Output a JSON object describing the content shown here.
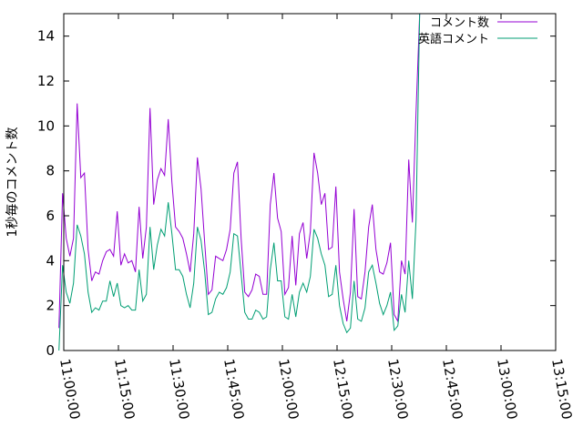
{
  "chart_data": {
    "type": "line",
    "title": "",
    "xlabel": "",
    "ylabel": "1秒毎のコメント数",
    "ylim": [
      0,
      15
    ],
    "xlim": [
      "11:00:00",
      "13:15:00"
    ],
    "y_ticks": [
      "0",
      "2",
      "4",
      "6",
      "8",
      "10",
      "12",
      "14"
    ],
    "x_ticks": [
      "11:00:00",
      "11:15:00",
      "11:30:00",
      "11:45:00",
      "12:00:00",
      "12:15:00",
      "12:30:00",
      "12:45:00",
      "13:00:00",
      "13:15:00"
    ],
    "grid": false,
    "legend_position": "top-right",
    "series": [
      {
        "name": "コメント数",
        "color": "#9400d3",
        "points": [
          [
            "10:58:40",
            1.0
          ],
          [
            "10:59:40",
            7.0
          ],
          [
            "11:00:40",
            5.0
          ],
          [
            "11:01:40",
            4.2
          ],
          [
            "11:02:40",
            5.0
          ],
          [
            "11:03:40",
            11.0
          ],
          [
            "11:04:40",
            7.7
          ],
          [
            "11:05:40",
            7.9
          ],
          [
            "11:06:40",
            4.5
          ],
          [
            "11:07:40",
            3.1
          ],
          [
            "11:08:40",
            3.5
          ],
          [
            "11:09:40",
            3.4
          ],
          [
            "11:10:40",
            4.0
          ],
          [
            "11:11:40",
            4.4
          ],
          [
            "11:12:40",
            4.5
          ],
          [
            "11:13:40",
            4.2
          ],
          [
            "11:14:40",
            6.2
          ],
          [
            "11:15:40",
            3.8
          ],
          [
            "11:16:40",
            4.3
          ],
          [
            "11:17:40",
            3.9
          ],
          [
            "11:18:40",
            4.0
          ],
          [
            "11:19:40",
            3.5
          ],
          [
            "11:20:40",
            6.4
          ],
          [
            "11:21:40",
            4.1
          ],
          [
            "11:22:40",
            5.5
          ],
          [
            "11:23:40",
            10.8
          ],
          [
            "11:24:40",
            6.5
          ],
          [
            "11:25:40",
            7.6
          ],
          [
            "11:26:40",
            8.1
          ],
          [
            "11:27:40",
            7.8
          ],
          [
            "11:28:40",
            10.3
          ],
          [
            "11:29:40",
            7.5
          ],
          [
            "11:30:40",
            5.5
          ],
          [
            "11:31:40",
            5.3
          ],
          [
            "11:32:40",
            5.0
          ],
          [
            "11:33:40",
            4.3
          ],
          [
            "11:34:40",
            3.5
          ],
          [
            "11:35:40",
            5.2
          ],
          [
            "11:36:40",
            8.6
          ],
          [
            "11:37:40",
            7.2
          ],
          [
            "11:38:40",
            4.8
          ],
          [
            "11:39:40",
            2.5
          ],
          [
            "11:40:40",
            2.7
          ],
          [
            "11:41:40",
            4.2
          ],
          [
            "11:42:40",
            4.1
          ],
          [
            "11:43:40",
            4.0
          ],
          [
            "11:44:40",
            4.5
          ],
          [
            "11:45:40",
            5.4
          ],
          [
            "11:46:40",
            7.9
          ],
          [
            "11:47:40",
            8.4
          ],
          [
            "11:48:40",
            5.0
          ],
          [
            "11:49:40",
            2.6
          ],
          [
            "11:50:40",
            2.4
          ],
          [
            "11:51:40",
            2.7
          ],
          [
            "11:52:40",
            3.4
          ],
          [
            "11:53:40",
            3.3
          ],
          [
            "11:54:40",
            2.5
          ],
          [
            "11:55:40",
            2.5
          ],
          [
            "11:56:40",
            6.5
          ],
          [
            "11:57:40",
            7.9
          ],
          [
            "11:58:40",
            5.9
          ],
          [
            "11:59:40",
            5.3
          ],
          [
            "12:00:40",
            2.5
          ],
          [
            "12:01:40",
            2.8
          ],
          [
            "12:02:40",
            5.1
          ],
          [
            "12:03:40",
            2.9
          ],
          [
            "12:04:40",
            5.2
          ],
          [
            "12:05:40",
            5.7
          ],
          [
            "12:06:40",
            4.1
          ],
          [
            "12:07:40",
            5.3
          ],
          [
            "12:08:40",
            8.8
          ],
          [
            "12:09:40",
            7.9
          ],
          [
            "12:10:40",
            6.5
          ],
          [
            "12:11:40",
            7.0
          ],
          [
            "12:12:40",
            4.5
          ],
          [
            "12:13:40",
            4.6
          ],
          [
            "12:14:40",
            7.3
          ],
          [
            "12:15:40",
            3.5
          ],
          [
            "12:16:40",
            2.3
          ],
          [
            "12:17:40",
            1.3
          ],
          [
            "12:18:40",
            2.6
          ],
          [
            "12:19:40",
            6.3
          ],
          [
            "12:20:40",
            2.4
          ],
          [
            "12:21:40",
            2.3
          ],
          [
            "12:22:40",
            3.5
          ],
          [
            "12:23:40",
            5.5
          ],
          [
            "12:24:40",
            6.5
          ],
          [
            "12:25:40",
            4.5
          ],
          [
            "12:26:40",
            3.5
          ],
          [
            "12:27:40",
            3.4
          ],
          [
            "12:28:40",
            3.9
          ],
          [
            "12:29:40",
            4.8
          ],
          [
            "12:30:40",
            1.6
          ],
          [
            "12:31:40",
            1.3
          ],
          [
            "12:32:40",
            4.0
          ],
          [
            "12:33:40",
            3.4
          ],
          [
            "12:34:40",
            8.5
          ],
          [
            "12:35:40",
            5.7
          ],
          [
            "12:36:40",
            10.6
          ],
          [
            "12:37:40",
            15.0
          ]
        ]
      },
      {
        "name": "英語コメント",
        "color": "#009e73",
        "points": [
          [
            "10:58:40",
            0.0
          ],
          [
            "10:59:40",
            3.8
          ],
          [
            "11:00:40",
            2.6
          ],
          [
            "11:01:40",
            2.1
          ],
          [
            "11:02:40",
            3.0
          ],
          [
            "11:03:40",
            5.6
          ],
          [
            "11:04:40",
            5.1
          ],
          [
            "11:05:40",
            4.3
          ],
          [
            "11:06:40",
            2.6
          ],
          [
            "11:07:40",
            1.7
          ],
          [
            "11:08:40",
            1.9
          ],
          [
            "11:09:40",
            1.8
          ],
          [
            "11:10:40",
            2.2
          ],
          [
            "11:11:40",
            2.2
          ],
          [
            "11:12:40",
            3.1
          ],
          [
            "11:13:40",
            2.4
          ],
          [
            "11:14:40",
            3.0
          ],
          [
            "11:15:40",
            2.0
          ],
          [
            "11:16:40",
            1.9
          ],
          [
            "11:17:40",
            2.0
          ],
          [
            "11:18:40",
            1.8
          ],
          [
            "11:19:40",
            1.8
          ],
          [
            "11:20:40",
            3.6
          ],
          [
            "11:21:40",
            2.2
          ],
          [
            "11:22:40",
            2.5
          ],
          [
            "11:23:40",
            5.5
          ],
          [
            "11:24:40",
            3.6
          ],
          [
            "11:25:40",
            4.7
          ],
          [
            "11:26:40",
            5.4
          ],
          [
            "11:27:40",
            5.1
          ],
          [
            "11:28:40",
            6.6
          ],
          [
            "11:29:40",
            5.2
          ],
          [
            "11:30:40",
            3.6
          ],
          [
            "11:31:40",
            3.6
          ],
          [
            "11:32:40",
            3.3
          ],
          [
            "11:33:40",
            2.5
          ],
          [
            "11:34:40",
            1.9
          ],
          [
            "11:35:40",
            3.0
          ],
          [
            "11:36:40",
            5.5
          ],
          [
            "11:37:40",
            4.9
          ],
          [
            "11:38:40",
            3.5
          ],
          [
            "11:39:40",
            1.6
          ],
          [
            "11:40:40",
            1.7
          ],
          [
            "11:41:40",
            2.3
          ],
          [
            "11:42:40",
            2.6
          ],
          [
            "11:43:40",
            2.5
          ],
          [
            "11:44:40",
            2.8
          ],
          [
            "11:45:40",
            3.5
          ],
          [
            "11:46:40",
            5.2
          ],
          [
            "11:47:40",
            5.1
          ],
          [
            "11:48:40",
            3.4
          ],
          [
            "11:49:40",
            1.7
          ],
          [
            "11:50:40",
            1.4
          ],
          [
            "11:51:40",
            1.4
          ],
          [
            "11:52:40",
            1.8
          ],
          [
            "11:53:40",
            1.7
          ],
          [
            "11:54:40",
            1.4
          ],
          [
            "11:55:40",
            1.5
          ],
          [
            "11:56:40",
            3.6
          ],
          [
            "11:57:40",
            4.8
          ],
          [
            "11:58:40",
            3.1
          ],
          [
            "11:59:40",
            3.1
          ],
          [
            "12:00:40",
            1.5
          ],
          [
            "12:01:40",
            1.4
          ],
          [
            "12:02:40",
            2.5
          ],
          [
            "12:03:40",
            1.5
          ],
          [
            "12:04:40",
            2.6
          ],
          [
            "12:05:40",
            3.0
          ],
          [
            "12:06:40",
            2.6
          ],
          [
            "12:07:40",
            3.3
          ],
          [
            "12:08:40",
            5.4
          ],
          [
            "12:09:40",
            5.0
          ],
          [
            "12:10:40",
            4.3
          ],
          [
            "12:11:40",
            3.8
          ],
          [
            "12:12:40",
            2.4
          ],
          [
            "12:13:40",
            2.5
          ],
          [
            "12:14:40",
            3.8
          ],
          [
            "12:15:40",
            2.0
          ],
          [
            "12:16:40",
            1.2
          ],
          [
            "12:17:40",
            0.8
          ],
          [
            "12:18:40",
            1.0
          ],
          [
            "12:19:40",
            3.1
          ],
          [
            "12:20:40",
            1.4
          ],
          [
            "12:21:40",
            1.3
          ],
          [
            "12:22:40",
            1.9
          ],
          [
            "12:23:40",
            3.5
          ],
          [
            "12:24:40",
            3.8
          ],
          [
            "12:25:40",
            3.0
          ],
          [
            "12:26:40",
            2.1
          ],
          [
            "12:27:40",
            1.6
          ],
          [
            "12:28:40",
            2.0
          ],
          [
            "12:29:40",
            2.6
          ],
          [
            "12:30:40",
            0.9
          ],
          [
            "12:31:40",
            1.1
          ],
          [
            "12:32:40",
            2.5
          ],
          [
            "12:33:40",
            1.7
          ],
          [
            "12:34:40",
            4.0
          ],
          [
            "12:35:40",
            2.3
          ],
          [
            "12:36:40",
            5.8
          ],
          [
            "12:37:40",
            15.0
          ]
        ]
      }
    ]
  }
}
